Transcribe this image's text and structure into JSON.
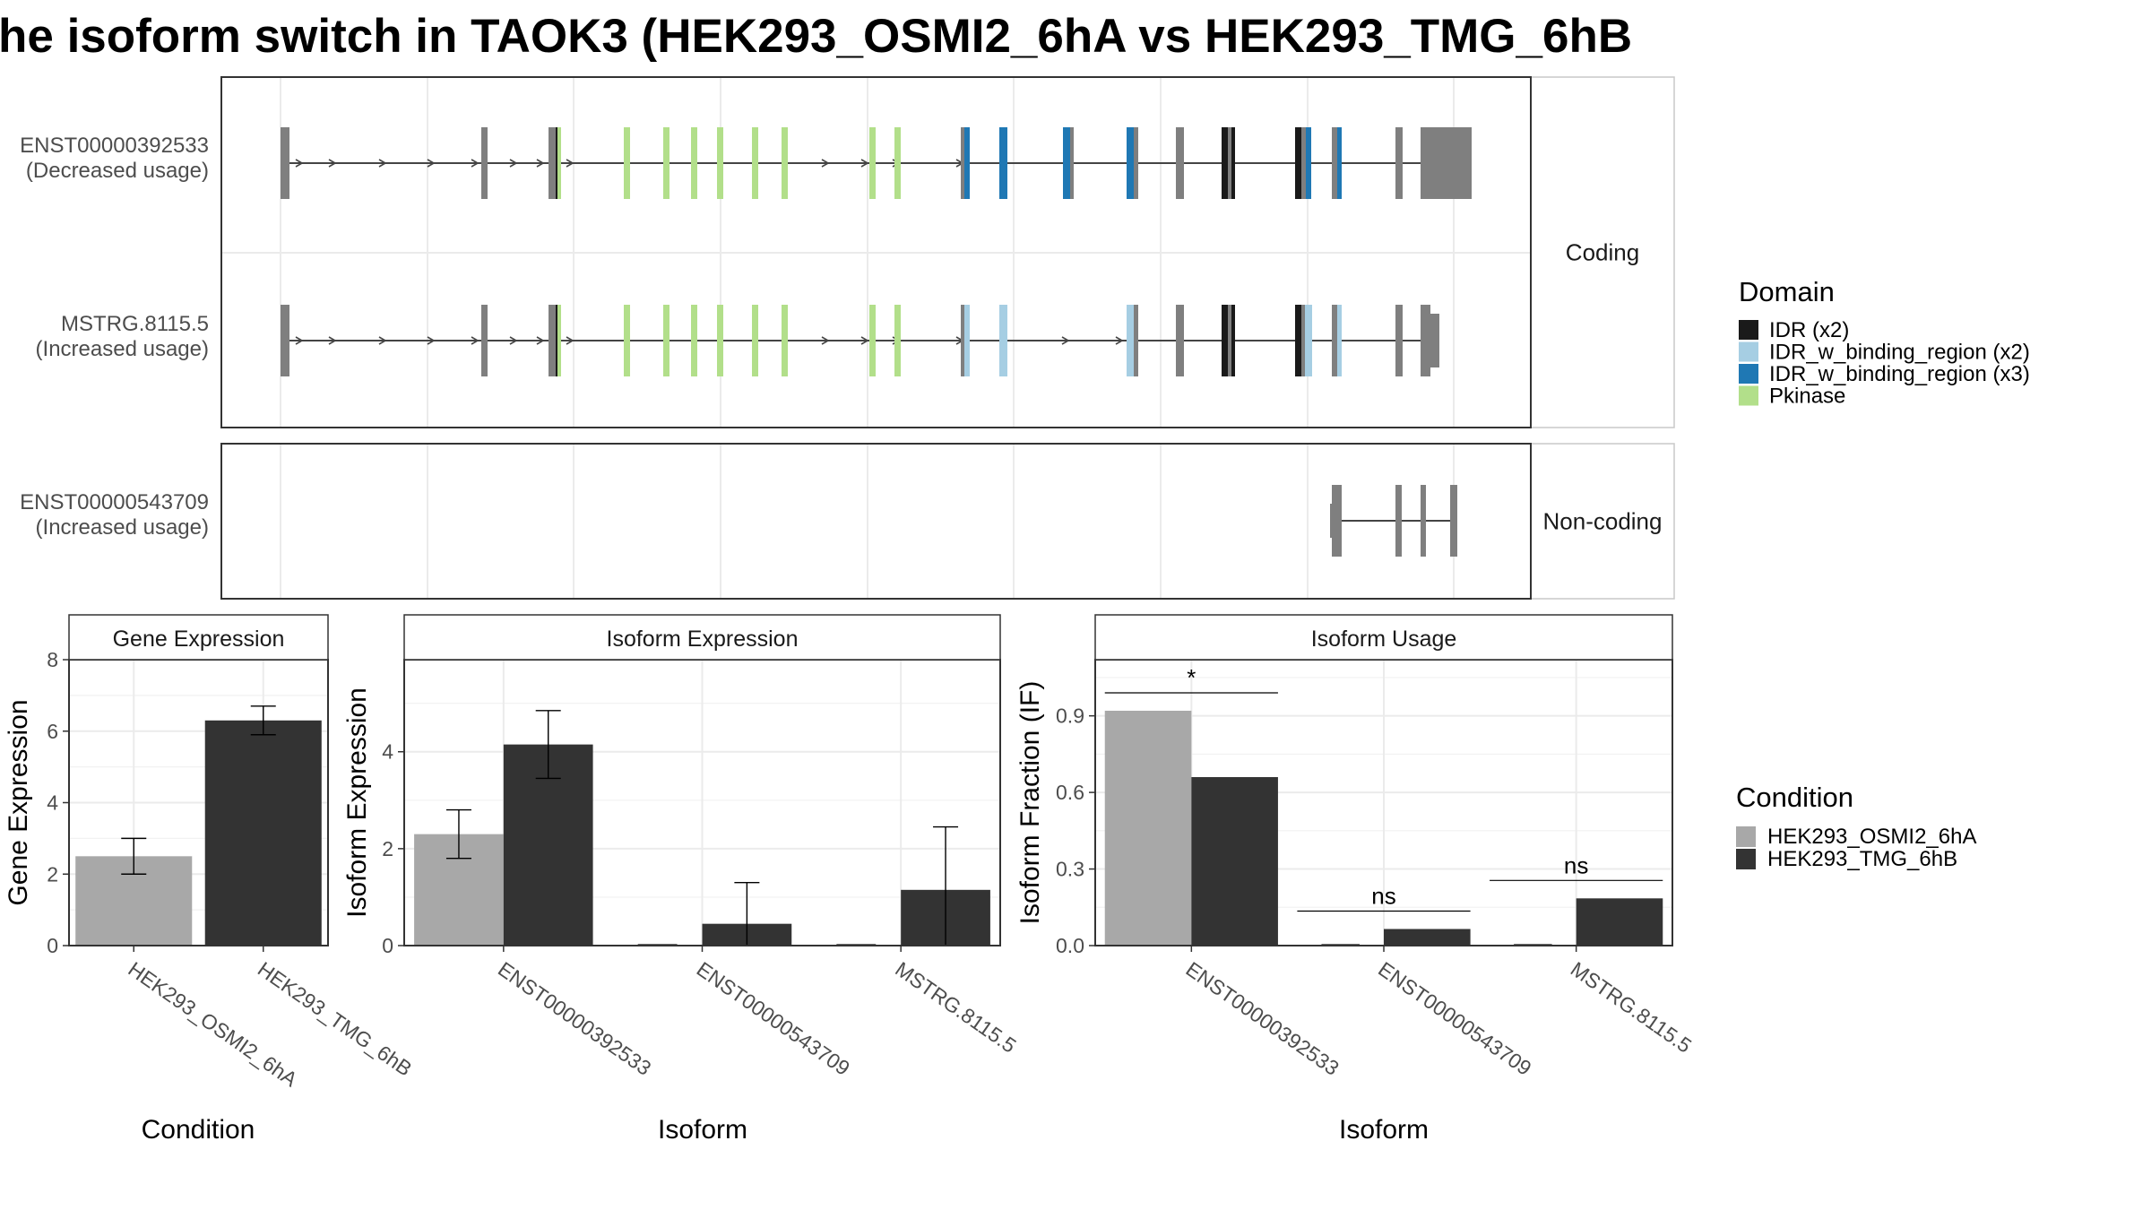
{
  "title": "he isoform switch in TAOK3 (HEK293_OSMI2_6hA vs HEK293_TMG_6hB",
  "colors": {
    "cond_a": "#A8A8A8",
    "cond_b": "#333333",
    "exon": "#7F7F7F",
    "IDR (x2)": "#1A1A1A",
    "IDR_w_binding_region (x2)": "#A6CEE3",
    "IDR_w_binding_region (x3)": "#1F78B4",
    "Pkinase": "#B2DF8A"
  },
  "isoform_panel": {
    "facets": [
      "Coding",
      "Non-coding"
    ],
    "transcripts": [
      {
        "id": "ENST00000392533",
        "status": "(Decreased usage)",
        "facet": "Coding"
      },
      {
        "id": "MSTRG.8115.5",
        "status": "(Increased usage)",
        "facet": "Coding"
      },
      {
        "id": "ENST00000543709",
        "status": "(Increased usage)",
        "facet": "Non-coding"
      }
    ]
  },
  "legends": {
    "domain": {
      "title": "Domain",
      "items": [
        "IDR (x2)",
        "IDR_w_binding_region (x2)",
        "IDR_w_binding_region (x3)",
        "Pkinase"
      ]
    },
    "condition": {
      "title": "Condition",
      "items": [
        "HEK293_OSMI2_6hA",
        "HEK293_TMG_6hB"
      ]
    }
  },
  "chart_data": [
    {
      "type": "bar",
      "panel": "Gene Expression",
      "categories": [
        "HEK293_OSMI2_6hA",
        "HEK293_TMG_6hB"
      ],
      "values": [
        2.5,
        6.3
      ],
      "errors": [
        [
          2.0,
          3.0
        ],
        [
          5.9,
          6.7
        ]
      ],
      "xlabel": "Condition",
      "ylabel": "Gene Expression",
      "ylim": [
        0,
        8
      ],
      "yticks": [
        0,
        2,
        4,
        6,
        8
      ],
      "grid": true
    },
    {
      "type": "bar",
      "panel": "Isoform Expression",
      "categories": [
        "ENST00000392533",
        "ENST00000543709",
        "MSTRG.8115.5"
      ],
      "series": [
        {
          "name": "HEK293_OSMI2_6hA",
          "values": [
            2.3,
            0.0,
            0.0
          ],
          "errors": [
            [
              1.8,
              2.8
            ],
            [
              0.0,
              0.0
            ],
            [
              0.0,
              0.0
            ]
          ]
        },
        {
          "name": "HEK293_TMG_6hB",
          "values": [
            4.15,
            0.45,
            1.15
          ],
          "errors": [
            [
              3.45,
              4.85
            ],
            [
              0.0,
              1.3
            ],
            [
              0.0,
              2.45
            ]
          ]
        }
      ],
      "xlabel": "Isoform",
      "ylabel": "Isoform Expression",
      "ylim": [
        0,
        5.9
      ],
      "yticks": [
        0,
        2,
        4
      ],
      "grid": true
    },
    {
      "type": "bar",
      "panel": "Isoform Usage",
      "categories": [
        "ENST00000392533",
        "ENST00000543709",
        "MSTRG.8115.5"
      ],
      "series": [
        {
          "name": "HEK293_OSMI2_6hA",
          "values": [
            0.92,
            0.0,
            0.0
          ]
        },
        {
          "name": "HEK293_TMG_6hB",
          "values": [
            0.66,
            0.065,
            0.185
          ]
        }
      ],
      "significance": [
        "*",
        "ns",
        "ns"
      ],
      "xlabel": "Isoform",
      "ylabel": "Isoform Fraction (IF)",
      "ylim": [
        0,
        1.12
      ],
      "yticks": [
        0.0,
        0.3,
        0.6,
        0.9
      ],
      "ytick_labels": [
        "0.0",
        "0.3",
        "0.6",
        "0.9"
      ],
      "grid": true
    }
  ]
}
